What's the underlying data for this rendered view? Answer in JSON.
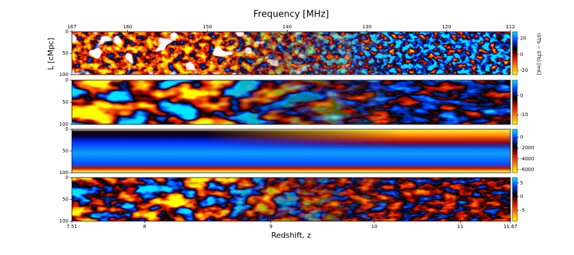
{
  "chart_data": [
    {
      "type": "heatmap",
      "title": "Frequency [MHz]",
      "xlim": [
        167,
        112
      ],
      "xticks": [
        167,
        160,
        150,
        140,
        130,
        120,
        112
      ],
      "ylabel": "L [cMpc]",
      "ylim": [
        100,
        0
      ],
      "yticks": [
        0,
        50,
        100
      ],
      "clim": [
        -25,
        28
      ],
      "cticks": [
        20,
        0,
        -20
      ],
      "colorbar_label": "(δTb − δT̄b) [mK]",
      "colormap": [
        "#00e5ff",
        "#0040ff",
        "#000000",
        "#d01000",
        "#ff8000",
        "#ffff00"
      ]
    },
    {
      "type": "heatmap",
      "ylim": [
        100,
        0
      ],
      "yticks": [
        0,
        50,
        100
      ],
      "clim": [
        -15,
        8
      ],
      "cticks": [
        0,
        -10
      ],
      "colormap": [
        "#00e5ff",
        "#0040ff",
        "#000000",
        "#d01000",
        "#ff8000",
        "#ffff00"
      ]
    },
    {
      "type": "heatmap",
      "ylim": [
        100,
        0
      ],
      "yticks": [
        0,
        50,
        100
      ],
      "clim": [
        -6600,
        1500
      ],
      "cticks": [
        0,
        -2000,
        -4000,
        -6000
      ],
      "colormap": [
        "#00e5ff",
        "#0040ff",
        "#000000",
        "#d01000",
        "#ff8000",
        "#ffff00"
      ]
    },
    {
      "type": "heatmap",
      "ylim": [
        100,
        0
      ],
      "yticks": [
        0,
        50,
        100
      ],
      "clim": [
        -9,
        7
      ],
      "cticks": [
        5,
        0,
        -5
      ],
      "xlabel": "Redshift, z",
      "zlim": [
        7.51,
        11.67
      ],
      "zticks": [
        7.51,
        8,
        9,
        10,
        11,
        11.67
      ],
      "colormap": [
        "#00e5ff",
        "#0040ff",
        "#000000",
        "#d01000",
        "#ff8000",
        "#ffff00"
      ]
    }
  ]
}
